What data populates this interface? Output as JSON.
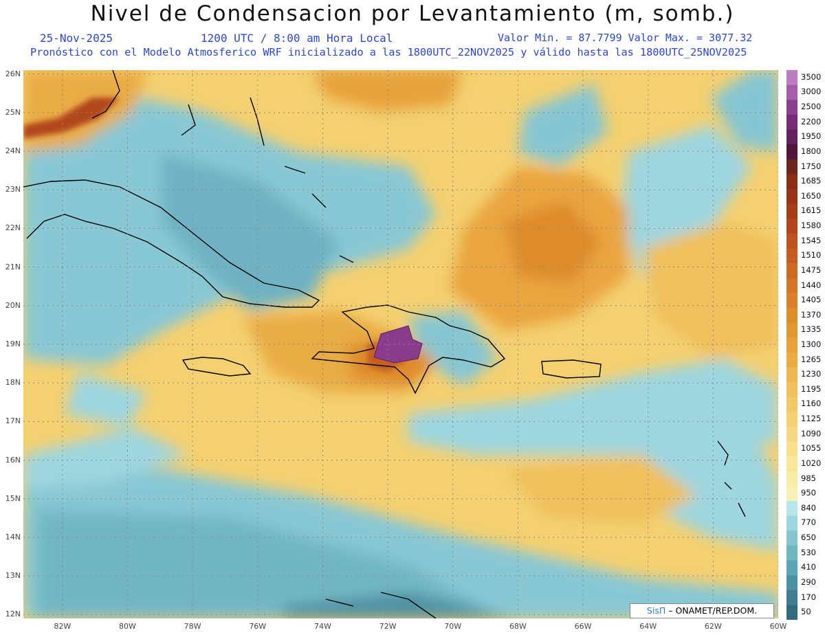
{
  "title": "Nivel de Condensacion por Levantamiento (m, somb.)",
  "subtitle": {
    "date": "25-Nov-2025",
    "time": "1200 UTC / 8:00 am Hora Local",
    "range": "Valor Min. = 87.7799  Valor Max. = 3077.32",
    "model": "Pronóstico con el Modelo Atmosferico WRF inicializado a las 1800UTC_22NOV2025 y válido hasta las  1800UTC_25NOV2025"
  },
  "map": {
    "lat_ticks": [
      "26N",
      "25N",
      "24N",
      "23N",
      "22N",
      "21N",
      "20N",
      "19N",
      "18N",
      "17N",
      "16N",
      "15N",
      "14N",
      "13N",
      "12N"
    ],
    "lon_ticks": [
      "82W",
      "80W",
      "78W",
      "76W",
      "74W",
      "72W",
      "70W",
      "68W",
      "66W",
      "64W",
      "62W",
      "60W"
    ],
    "extent": {
      "lon_min": -83.2,
      "lon_max": -60.0,
      "lat_min": 11.9,
      "lat_max": 26.1
    },
    "grid": "dotted"
  },
  "colorbar": {
    "labels": [
      "3500",
      "3000",
      "2500",
      "2200",
      "1950",
      "1800",
      "1750",
      "1685",
      "1650",
      "1615",
      "1580",
      "1545",
      "1510",
      "1475",
      "1440",
      "1405",
      "1370",
      "1335",
      "1300",
      "1265",
      "1230",
      "1195",
      "1160",
      "1125",
      "1090",
      "1055",
      "1020",
      "985",
      "950",
      "840",
      "770",
      "650",
      "530",
      "410",
      "290",
      "170",
      "50"
    ],
    "colors": [
      "#c07cc0",
      "#a95aa8",
      "#8d3f8e",
      "#762b74",
      "#63205e",
      "#4f163e",
      "#6e2418",
      "#8a2c18",
      "#9a3418",
      "#a63c1a",
      "#b2461c",
      "#bd521e",
      "#c65e20",
      "#cd6a22",
      "#d37526",
      "#d98028",
      "#de8b2c",
      "#e29632",
      "#e6a13a",
      "#e9ac44",
      "#edb650",
      "#f0c05c",
      "#f2c968",
      "#f4d174",
      "#f6d980",
      "#f8e08c",
      "#f9e698",
      "#faeca6",
      "#fbf1b2",
      "#b9e6ea",
      "#9ed6df",
      "#86c6d2",
      "#72b6c4",
      "#5fa3b4",
      "#4e90a2",
      "#3f7d90",
      "#306a7e"
    ]
  },
  "credit": {
    "brand": "SisΠ",
    "text": "–  ONAMET/REP.DOM."
  }
}
